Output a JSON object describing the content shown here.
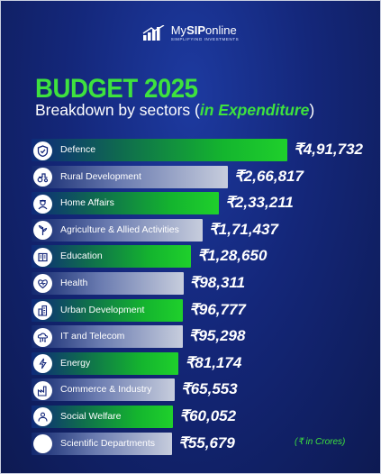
{
  "brand": {
    "name_prefix": "My",
    "name_bold": "SIP",
    "name_suffix": "online",
    "tagline": "SIMPLIFYING INVESTMENTS"
  },
  "header": {
    "title": "BUDGET 2025",
    "subtitle_pre": "Breakdown by sectors (",
    "subtitle_em": "in Expenditure",
    "subtitle_post": ")"
  },
  "note": "(₹ in Crores)",
  "colors": {
    "accent_green": "#3ee23e",
    "background": "#14277a"
  },
  "chart_data": {
    "type": "bar",
    "orientation": "horizontal",
    "unit": "₹ in Crores",
    "categories": [
      "Defence",
      "Rural Development",
      "Home Affairs",
      "Agriculture & Allied Activities",
      "Education",
      "Health",
      "Urban Development",
      "IT and Telecom",
      "Energy",
      "Commerce & Industry",
      "Social Welfare",
      "Scientific Departments"
    ],
    "values": [
      491732,
      266817,
      233211,
      171437,
      128650,
      98311,
      96777,
      95298,
      81174,
      65553,
      60052,
      55679
    ],
    "value_labels": [
      "₹4,91,732",
      "₹2,66,817",
      "₹2,33,211",
      "₹1,71,437",
      "₹1,28,650",
      "₹98,311",
      "₹96,777",
      "₹95,298",
      "₹81,174",
      "₹65,553",
      "₹60,052",
      "₹55,679"
    ],
    "icons": [
      "shield-icon",
      "tractor-icon",
      "officer-icon",
      "agriculture-icon",
      "education-icon",
      "health-icon",
      "city-icon",
      "cloud-network-icon",
      "energy-icon",
      "factory-icon",
      "social-welfare-icon",
      "science-icon"
    ],
    "bar_colors": [
      "green",
      "grey",
      "green",
      "grey",
      "green",
      "grey",
      "green",
      "grey",
      "green",
      "grey",
      "green",
      "grey"
    ]
  }
}
